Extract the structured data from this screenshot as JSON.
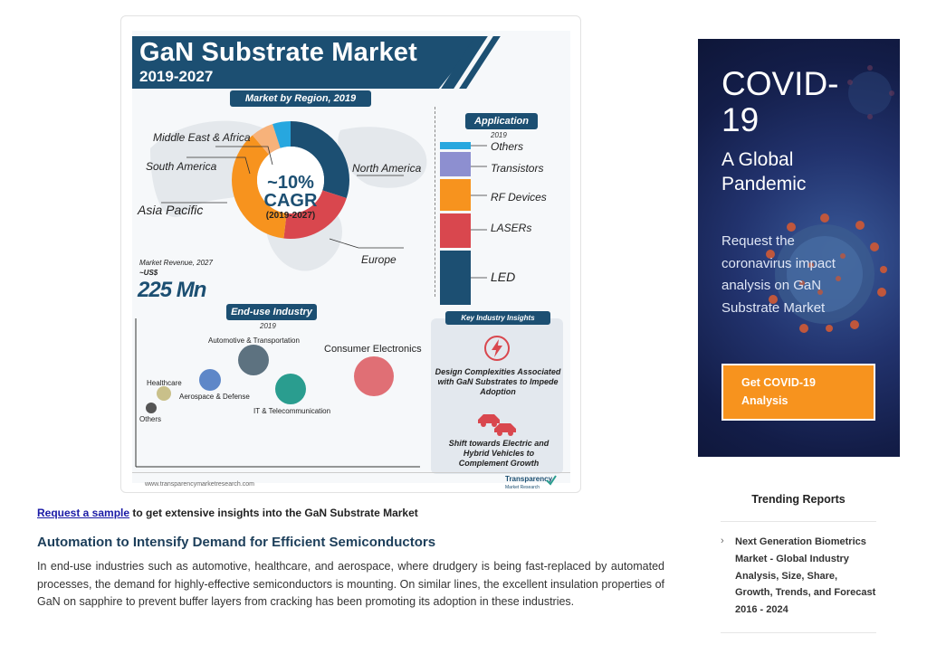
{
  "infographic": {
    "title": "GaN Substrate Market",
    "years": "2019-2027",
    "region_pill": "Market by Region, 2019",
    "regions": {
      "middle_east": "Middle East & Africa",
      "south_america": "South America",
      "asia_pacific": "Asia Pacific",
      "north_america": "North America",
      "europe": "Europe"
    },
    "cagr_value": "~10%",
    "cagr_label": "CAGR",
    "cagr_years": "(2019-2027)",
    "revenue_label": "Market Revenue, 2027",
    "revenue_prefix": "~US$",
    "revenue_value": "225 Mn",
    "application_pill": "Application",
    "application_year": "2019",
    "applications": [
      "Others",
      "Transistors",
      "RF Devices",
      "LASERs",
      "LED"
    ],
    "enduse_pill": "End-use Industry",
    "enduse_year": "2019",
    "enduse": {
      "automotive": "Automotive & Transportation",
      "consumer": "Consumer Electronics",
      "healthcare": "Healthcare",
      "aerospace": "Aerospace & Defense",
      "it": "IT & Telecommunication",
      "others": "Others"
    },
    "insights_pill": "Key Industry Insights",
    "insight_1": "Design Complexities Associated with GaN Substrates to Impede Adoption",
    "insight_2": "Shift towards Electric and Hybrid Vehicles to Complement Growth",
    "footer_url": "www.transparencymarketresearch.com",
    "logo_name": "Transparency",
    "logo_sub": "Market Research"
  },
  "article": {
    "sample_link": "Request a sample",
    "sample_rest": " to get extensive insights into the GaN Substrate Market",
    "heading": "Automation to Intensify Demand for Efficient Semiconductors",
    "body": "In end-use industries such as automotive, healthcare, and aerospace, where drudgery is being fast-replaced by automated processes, the demand for highly-effective semiconductors is mounting. On similar lines, the excellent insulation properties of GaN on sapphire to prevent buffer layers from cracking has been promoting its adoption in these industries."
  },
  "covid": {
    "title": "COVID-19",
    "subtitle": "A Global Pandemic",
    "description": "Request the coronavirus impact analysis on GaN Substrate Market",
    "button": "Get COVID-19 Analysis"
  },
  "trending": {
    "title": "Trending Reports",
    "items": [
      {
        "label": "Next Generation Biometrics Market - Global Industry Analysis, Size, Share, Growth, Trends, and Forecast 2016 - 2024"
      }
    ]
  },
  "colors": {
    "navy": "#1c4f72",
    "orange": "#f7931e",
    "red": "#d9474e",
    "cyan": "#27a7df",
    "lavender": "#8d8fd0",
    "link": "#1a1aa6"
  }
}
